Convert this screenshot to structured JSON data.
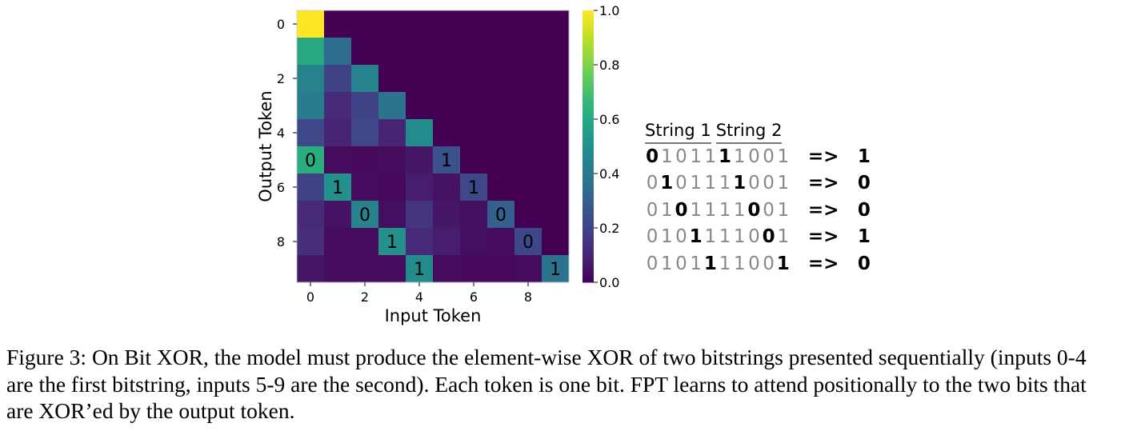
{
  "chart_data": {
    "type": "heatmap",
    "xlabel": "Input Token",
    "ylabel": "Output Token",
    "x_ticks": [
      "0",
      "2",
      "4",
      "6",
      "8"
    ],
    "y_ticks": [
      "0",
      "2",
      "4",
      "6",
      "8"
    ],
    "colorbar_ticks": [
      "0.0",
      "0.2",
      "0.4",
      "0.6",
      "0.8",
      "1.0"
    ],
    "colorbar_range": [
      0,
      1
    ],
    "colormap": "viridis",
    "values": [
      [
        1.0,
        0,
        0,
        0,
        0,
        0,
        0,
        0,
        0,
        0
      ],
      [
        0.6,
        0.35,
        0,
        0,
        0,
        0,
        0,
        0,
        0,
        0
      ],
      [
        0.45,
        0.2,
        0.45,
        0,
        0,
        0,
        0,
        0,
        0,
        0
      ],
      [
        0.42,
        0.12,
        0.2,
        0.38,
        0,
        0,
        0,
        0,
        0,
        0
      ],
      [
        0.22,
        0.1,
        0.22,
        0.1,
        0.48,
        0,
        0,
        0,
        0,
        0
      ],
      [
        0.62,
        0.03,
        0.02,
        0.03,
        0.06,
        0.25,
        0,
        0,
        0,
        0
      ],
      [
        0.2,
        0.5,
        0.03,
        0.02,
        0.08,
        0.05,
        0.22,
        0,
        0,
        0
      ],
      [
        0.12,
        0.05,
        0.45,
        0.04,
        0.15,
        0.06,
        0.04,
        0.3,
        0,
        0
      ],
      [
        0.13,
        0.03,
        0.03,
        0.5,
        0.12,
        0.08,
        0.04,
        0.03,
        0.22,
        0
      ],
      [
        0.06,
        0.03,
        0.03,
        0.03,
        0.48,
        0.03,
        0.02,
        0.02,
        0.03,
        0.38
      ]
    ],
    "annotations": [
      {
        "row": 5,
        "col": 0,
        "text": "0"
      },
      {
        "row": 5,
        "col": 5,
        "text": "1"
      },
      {
        "row": 6,
        "col": 1,
        "text": "1"
      },
      {
        "row": 6,
        "col": 6,
        "text": "1"
      },
      {
        "row": 7,
        "col": 2,
        "text": "0"
      },
      {
        "row": 7,
        "col": 7,
        "text": "0"
      },
      {
        "row": 8,
        "col": 3,
        "text": "1"
      },
      {
        "row": 8,
        "col": 8,
        "text": "0"
      },
      {
        "row": 9,
        "col": 4,
        "text": "1"
      },
      {
        "row": 9,
        "col": 9,
        "text": "1"
      }
    ]
  },
  "strings": {
    "header1": "String 1",
    "header2": "String 2",
    "arrow": "=>",
    "rows": [
      {
        "bits": "0101111001",
        "bold": [
          0,
          5
        ],
        "result": "1"
      },
      {
        "bits": "0101111001",
        "bold": [
          1,
          6
        ],
        "result": "0"
      },
      {
        "bits": "0101111001",
        "bold": [
          2,
          7
        ],
        "result": "0"
      },
      {
        "bits": "0101111001",
        "bold": [
          3,
          8
        ],
        "result": "1"
      },
      {
        "bits": "0101111001",
        "bold": [
          4,
          9
        ],
        "result": "0"
      }
    ]
  },
  "caption": "Figure 3: On Bit XOR, the model must produce the element-wise XOR of two bitstrings presented sequentially (inputs 0-4 are the first bitstring, inputs 5-9 are the second). Each token is one bit. FPT learns to attend positionally to the two bits that are XOR’ed by the output token."
}
